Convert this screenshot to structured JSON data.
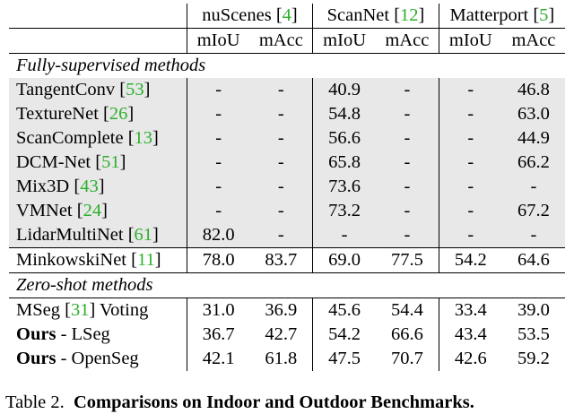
{
  "datasets": [
    {
      "name": "nuScenes",
      "ref": "4"
    },
    {
      "name": "ScanNet",
      "ref": "12"
    },
    {
      "name": "Matterport",
      "ref": "5"
    }
  ],
  "metrics": [
    "mIoU",
    "mAcc",
    "mIoU",
    "mAcc",
    "mIoU",
    "mAcc"
  ],
  "sections": {
    "fully_supervised": "Fully-supervised methods",
    "zero_shot": "Zero-shot methods"
  },
  "supervised_rows": [
    {
      "name": "TangentConv",
      "ref": "53",
      "suffix": "",
      "bold_prefix": "",
      "shaded": true,
      "values": [
        "-",
        "-",
        "40.9",
        "-",
        "-",
        "46.8"
      ],
      "bold": [
        false,
        false,
        false,
        false,
        false,
        false
      ]
    },
    {
      "name": "TextureNet",
      "ref": "26",
      "suffix": "",
      "bold_prefix": "",
      "shaded": true,
      "values": [
        "-",
        "-",
        "54.8",
        "-",
        "-",
        "63.0"
      ],
      "bold": [
        false,
        false,
        false,
        false,
        false,
        false
      ]
    },
    {
      "name": "ScanComplete",
      "ref": "13",
      "suffix": "",
      "bold_prefix": "",
      "shaded": true,
      "values": [
        "-",
        "-",
        "56.6",
        "-",
        "-",
        "44.9"
      ],
      "bold": [
        false,
        false,
        false,
        false,
        false,
        false
      ]
    },
    {
      "name": "DCM-Net",
      "ref": "51",
      "suffix": "",
      "bold_prefix": "",
      "shaded": true,
      "values": [
        "-",
        "-",
        "65.8",
        "-",
        "-",
        "66.2"
      ],
      "bold": [
        false,
        false,
        false,
        false,
        false,
        false
      ]
    },
    {
      "name": "Mix3D",
      "ref": "43",
      "suffix": "",
      "bold_prefix": "",
      "shaded": true,
      "values": [
        "-",
        "-",
        "73.6",
        "-",
        "-",
        "-"
      ],
      "bold": [
        false,
        false,
        true,
        false,
        false,
        false
      ]
    },
    {
      "name": "VMNet",
      "ref": "24",
      "suffix": "",
      "bold_prefix": "",
      "shaded": true,
      "values": [
        "-",
        "-",
        "73.2",
        "-",
        "-",
        "67.2"
      ],
      "bold": [
        false,
        false,
        false,
        false,
        false,
        true
      ]
    },
    {
      "name": "LidarMultiNet",
      "ref": "61",
      "suffix": "",
      "bold_prefix": "",
      "shaded": true,
      "values": [
        "82.0",
        "-",
        "-",
        "-",
        "-",
        "-"
      ],
      "bold": [
        true,
        false,
        false,
        false,
        false,
        false
      ]
    },
    {
      "name": "MinkowskiNet",
      "ref": "11",
      "suffix": "",
      "bold_prefix": "",
      "shaded": false,
      "values": [
        "78.0",
        "83.7",
        "69.0",
        "77.5",
        "54.2",
        "64.6"
      ],
      "bold": [
        false,
        false,
        false,
        false,
        false,
        false
      ]
    }
  ],
  "zero_shot_rows": [
    {
      "name": "MSeg",
      "ref": "31",
      "suffix": " Voting",
      "bold_prefix": "",
      "shaded": false,
      "values": [
        "31.0",
        "36.9",
        "45.6",
        "54.4",
        "33.4",
        "39.0"
      ],
      "bold": [
        false,
        false,
        false,
        false,
        false,
        false
      ]
    },
    {
      "name": " - LSeg",
      "ref": "",
      "suffix": "",
      "bold_prefix": "Ours",
      "shaded": false,
      "values": [
        "36.7",
        "42.7",
        "54.2",
        "66.6",
        "43.4",
        "53.5"
      ],
      "bold": [
        false,
        false,
        true,
        false,
        true,
        false
      ]
    },
    {
      "name": " - OpenSeg",
      "ref": "",
      "suffix": "",
      "bold_prefix": "Ours",
      "shaded": false,
      "values": [
        "42.1",
        "61.8",
        "47.5",
        "70.7",
        "42.6",
        "59.2"
      ],
      "bold": [
        true,
        true,
        false,
        true,
        false,
        true
      ]
    }
  ],
  "caption": {
    "label": "Table 2.",
    "title": "Comparisons on Indoor and Outdoor Benchmarks."
  }
}
